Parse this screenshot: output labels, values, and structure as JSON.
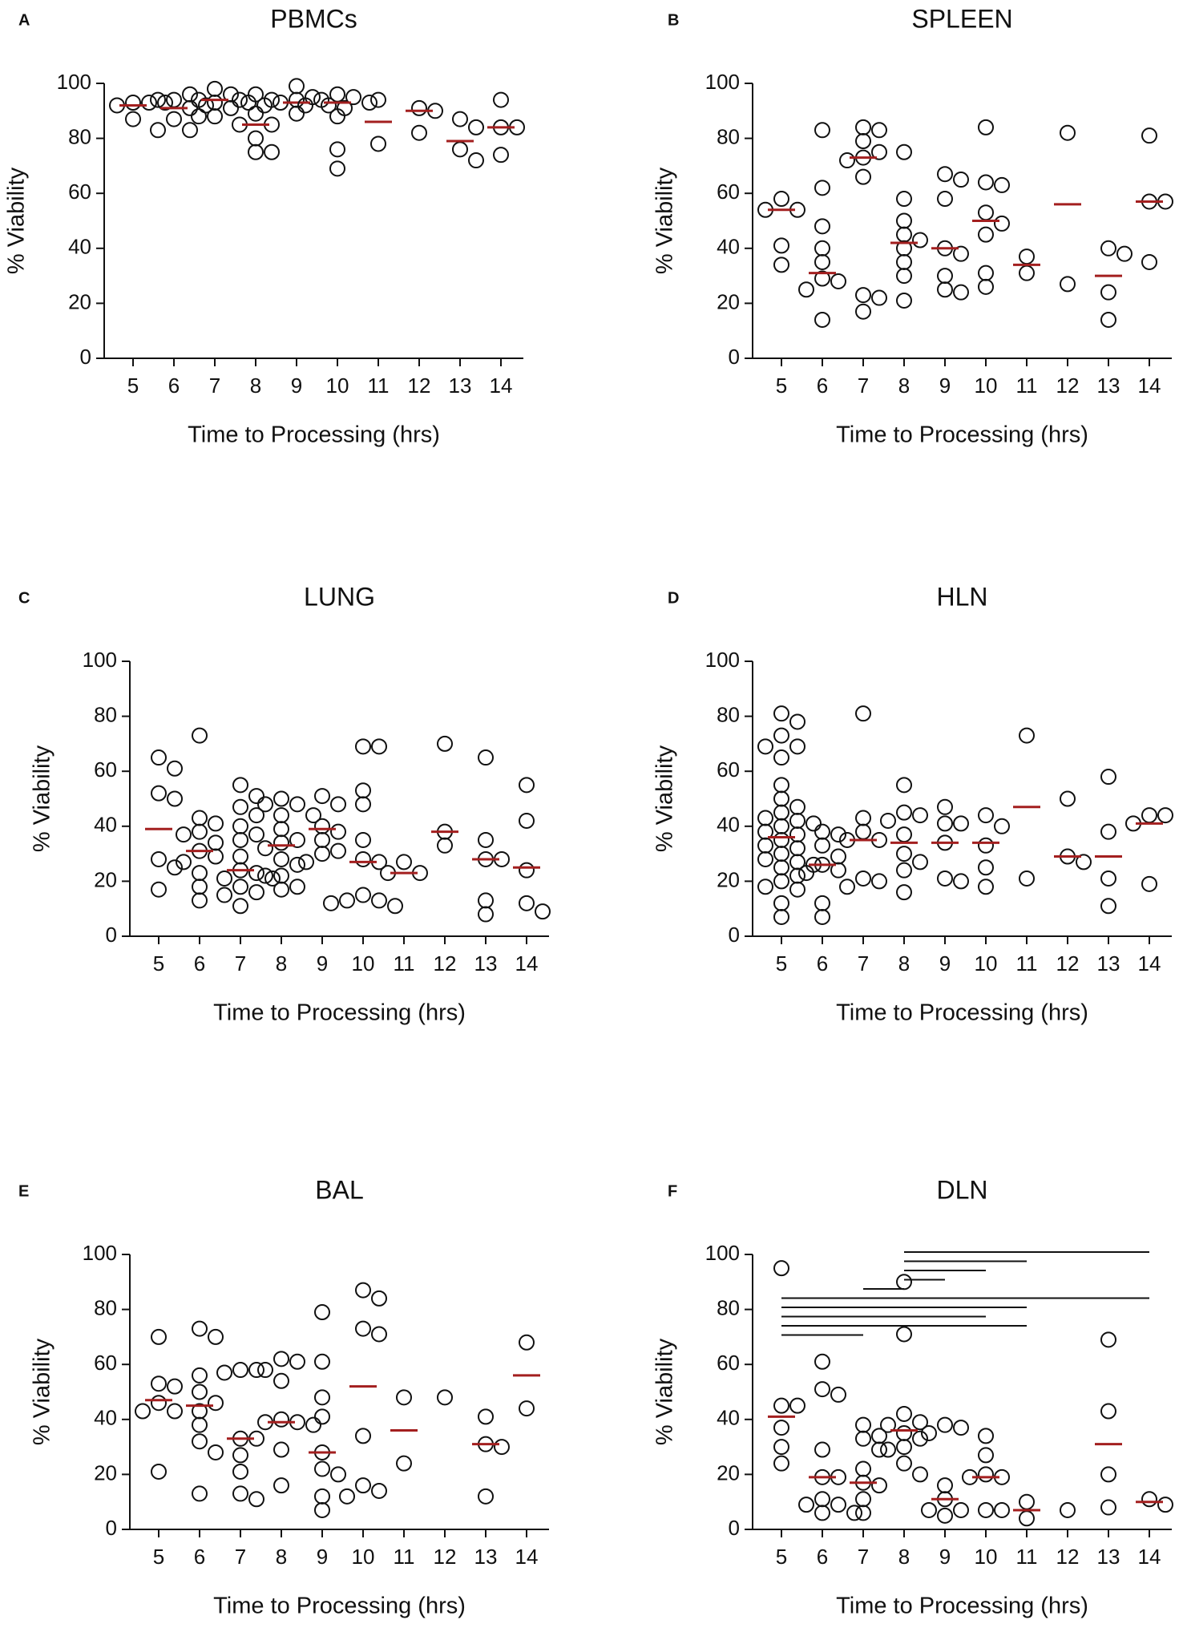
{
  "chart_data": [
    {
      "panel_label": "A",
      "type": "dot",
      "title": "PBMCs",
      "xlabel": "Time to Processing (hrs)",
      "ylabel": "% Viability",
      "categories": [
        "5",
        "6",
        "7",
        "8",
        "9",
        "10",
        "11",
        "12",
        "13",
        "14"
      ],
      "points": [
        [
          93,
          93,
          92,
          93,
          87
        ],
        [
          94,
          96,
          94,
          92,
          91,
          87,
          83,
          83
        ],
        [
          98,
          96,
          94,
          93,
          91,
          88,
          88
        ],
        [
          96,
          94,
          94,
          89,
          85,
          85,
          80,
          75,
          75
        ],
        [
          99,
          95,
          94,
          93,
          92,
          92,
          91,
          89,
          93
        ],
        [
          96,
          95,
          94,
          93,
          92,
          88,
          76,
          69
        ],
        [
          94,
          78
        ],
        [
          91,
          90,
          82
        ],
        [
          87,
          84,
          76,
          72
        ],
        [
          94,
          84,
          84,
          74
        ]
      ],
      "medians": [
        92,
        91,
        94,
        85,
        93,
        93,
        86,
        90,
        79,
        84
      ],
      "ylim": [
        0,
        100
      ],
      "yticks": [
        0,
        20,
        40,
        60,
        80,
        100
      ],
      "point_color": "#111111",
      "median_color": "#a31f1f"
    },
    {
      "panel_label": "B",
      "type": "dot",
      "title": "SPLEEN",
      "xlabel": "Time to Processing (hrs)",
      "ylabel": "% Viability",
      "categories": [
        "5",
        "6",
        "7",
        "8",
        "9",
        "10",
        "11",
        "12",
        "13",
        "14"
      ],
      "points": [
        [
          58,
          54,
          54,
          41,
          34
        ],
        [
          83,
          62,
          48,
          40,
          35,
          29,
          28,
          25,
          14
        ],
        [
          84,
          83,
          79,
          75,
          73,
          72,
          66,
          23,
          22,
          17
        ],
        [
          75,
          58,
          50,
          45,
          43,
          40,
          35,
          30,
          21
        ],
        [
          67,
          65,
          58,
          40,
          38,
          30,
          25,
          24
        ],
        [
          84,
          64,
          63,
          53,
          49,
          45,
          31,
          26
        ],
        [
          37,
          31
        ],
        [
          82,
          27
        ],
        [
          40,
          38,
          24,
          14
        ],
        [
          81,
          57,
          57,
          35
        ]
      ],
      "medians": [
        54,
        31,
        73,
        42,
        40,
        50,
        34,
        56,
        30,
        57
      ],
      "ylim": [
        0,
        100
      ],
      "yticks": [
        0,
        20,
        40,
        60,
        80,
        100
      ],
      "point_color": "#111111",
      "median_color": "#a31f1f"
    },
    {
      "panel_label": "C",
      "type": "dot",
      "title": "LUNG",
      "xlabel": "Time to Processing (hrs)",
      "ylabel": "% Viability",
      "categories": [
        "5",
        "6",
        "7",
        "8",
        "9",
        "10",
        "11",
        "12",
        "13",
        "14"
      ],
      "points": [
        [
          65,
          61,
          52,
          50,
          28,
          25,
          17
        ],
        [
          73,
          43,
          41,
          38,
          37,
          34,
          31,
          29,
          27,
          23,
          18,
          13
        ],
        [
          55,
          51,
          47,
          44,
          40,
          37,
          35,
          29,
          24,
          23,
          21,
          21,
          18,
          16,
          15,
          11
        ],
        [
          50,
          48,
          48,
          44,
          44,
          39,
          35,
          34,
          32,
          28,
          26,
          22,
          22,
          18,
          17
        ],
        [
          51,
          48,
          40,
          38,
          35,
          31,
          30,
          27
        ],
        [
          69,
          69,
          53,
          48,
          35,
          28,
          27,
          15,
          13,
          13,
          11,
          12
        ],
        [
          27,
          23,
          23
        ],
        [
          70,
          38,
          33
        ],
        [
          65,
          35,
          28,
          28,
          13,
          8
        ],
        [
          55,
          42,
          24,
          12,
          9
        ]
      ],
      "medians": [
        39,
        31,
        24,
        33,
        39,
        27,
        23,
        38,
        28,
        25
      ],
      "ylim": [
        0,
        100
      ],
      "yticks": [
        0,
        20,
        40,
        60,
        80,
        100
      ],
      "point_color": "#111111",
      "median_color": "#a31f1f"
    },
    {
      "panel_label": "D",
      "type": "dot",
      "title": "HLN",
      "xlabel": "Time to Processing (hrs)",
      "ylabel": "% Viability",
      "categories": [
        "5",
        "6",
        "7",
        "8",
        "9",
        "10",
        "11",
        "12",
        "13",
        "14"
      ],
      "points": [
        [
          81,
          78,
          73,
          69,
          69,
          65,
          55,
          50,
          47,
          45,
          43,
          42,
          41,
          40,
          38,
          37,
          35,
          33,
          32,
          30,
          28,
          27,
          26,
          25,
          22,
          20,
          18,
          17,
          12,
          7
        ],
        [
          38,
          37,
          33,
          29,
          26,
          24,
          23,
          12,
          7
        ],
        [
          81,
          43,
          38,
          35,
          35,
          21,
          20,
          18
        ],
        [
          55,
          45,
          44,
          42,
          37,
          30,
          27,
          24,
          16
        ],
        [
          47,
          41,
          41,
          34,
          21,
          20
        ],
        [
          44,
          40,
          33,
          25,
          18
        ],
        [
          73,
          21
        ],
        [
          50,
          29,
          27
        ],
        [
          58,
          38,
          21,
          11
        ],
        [
          44,
          44,
          41,
          19
        ]
      ],
      "medians": [
        36,
        26,
        35,
        34,
        34,
        34,
        47,
        29,
        29,
        41
      ],
      "ylim": [
        0,
        100
      ],
      "yticks": [
        0,
        20,
        40,
        60,
        80,
        100
      ],
      "point_color": "#111111",
      "median_color": "#a31f1f"
    },
    {
      "panel_label": "E",
      "type": "dot",
      "title": "BAL",
      "xlabel": "Time to Processing (hrs)",
      "ylabel": "% Viability",
      "categories": [
        "5",
        "6",
        "7",
        "8",
        "9",
        "10",
        "11",
        "12",
        "13",
        "14"
      ],
      "points": [
        [
          70,
          53,
          52,
          46,
          43,
          43,
          21
        ],
        [
          73,
          70,
          56,
          50,
          46,
          43,
          38,
          32,
          28,
          13
        ],
        [
          58,
          58,
          57,
          33,
          33,
          27,
          21,
          13,
          11
        ],
        [
          62,
          61,
          58,
          54,
          40,
          39,
          39,
          38,
          29,
          16
        ],
        [
          79,
          61,
          48,
          41,
          28,
          22,
          20,
          12,
          7
        ],
        [
          87,
          84,
          73,
          71,
          34,
          16,
          14,
          12
        ],
        [
          48,
          24
        ],
        [
          48
        ],
        [
          41,
          31,
          30,
          12
        ],
        [
          68,
          44
        ]
      ],
      "medians": [
        47,
        45,
        33,
        39,
        28,
        52,
        36,
        null,
        31,
        56
      ],
      "ylim": [
        0,
        100
      ],
      "yticks": [
        0,
        20,
        40,
        60,
        80,
        100
      ],
      "point_color": "#111111",
      "median_color": "#a31f1f"
    },
    {
      "panel_label": "F",
      "type": "dot",
      "title": "DLN",
      "xlabel": "Time to Processing (hrs)",
      "ylabel": "% Viability",
      "categories": [
        "5",
        "6",
        "7",
        "8",
        "9",
        "10",
        "11",
        "12",
        "13",
        "14"
      ],
      "points": [
        [
          95,
          45,
          45,
          37,
          30,
          24
        ],
        [
          61,
          51,
          49,
          29,
          19,
          19,
          11,
          9,
          9,
          6,
          6
        ],
        [
          38,
          34,
          33,
          29,
          22,
          17,
          16,
          11,
          6
        ],
        [
          90,
          71,
          42,
          39,
          38,
          35,
          33,
          30,
          29,
          24,
          20
        ],
        [
          38,
          37,
          35,
          16,
          11,
          7,
          7,
          5
        ],
        [
          34,
          27,
          20,
          19,
          19,
          7,
          7
        ],
        [
          10,
          4
        ],
        [
          7
        ],
        [
          69,
          43,
          20,
          8
        ],
        [
          11,
          9
        ]
      ],
      "medians": [
        41,
        19,
        17,
        36,
        11,
        19,
        7,
        null,
        31,
        10
      ],
      "ylim": [
        0,
        100
      ],
      "yticks": [
        0,
        20,
        40,
        60,
        80,
        100
      ],
      "point_color": "#111111",
      "median_color": "#a31f1f",
      "comparisons": [
        [
          "8",
          "14"
        ],
        [
          "8",
          "11"
        ],
        [
          "8",
          "10"
        ],
        [
          "8",
          "9"
        ],
        [
          "7",
          "8"
        ],
        [
          "5",
          "14"
        ],
        [
          "5",
          "11"
        ],
        [
          "5",
          "10"
        ],
        [
          "5",
          "11"
        ],
        [
          "5",
          "7"
        ]
      ]
    }
  ]
}
